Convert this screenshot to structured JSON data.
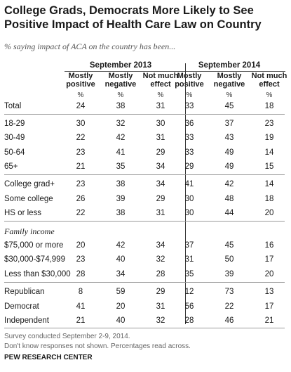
{
  "title": "College Grads, Democrats More Likely to See Positive Impact of Health Care Law on Country",
  "subtitle": "% saying impact of ACA on the country has been...",
  "chart_data": {
    "type": "table",
    "groups": [
      "September 2013",
      "September 2014"
    ],
    "columns": [
      "Mostly positive",
      "Mostly negative",
      "Not much effect"
    ],
    "pct_symbol": "%",
    "rows": [
      {
        "label": "Total",
        "values": [
          "24",
          "38",
          "31",
          "33",
          "45",
          "18"
        ]
      },
      {
        "label": "18-29",
        "values": [
          "30",
          "32",
          "30",
          "36",
          "37",
          "23"
        ]
      },
      {
        "label": "30-49",
        "values": [
          "22",
          "42",
          "31",
          "33",
          "43",
          "19"
        ]
      },
      {
        "label": "50-64",
        "values": [
          "23",
          "41",
          "29",
          "33",
          "49",
          "14"
        ]
      },
      {
        "label": "65+",
        "values": [
          "21",
          "35",
          "34",
          "29",
          "49",
          "15"
        ]
      },
      {
        "label": "College grad+",
        "values": [
          "23",
          "38",
          "34",
          "41",
          "42",
          "14"
        ]
      },
      {
        "label": "Some college",
        "values": [
          "26",
          "39",
          "29",
          "30",
          "48",
          "18"
        ]
      },
      {
        "label": "HS or less",
        "values": [
          "22",
          "38",
          "31",
          "30",
          "44",
          "20"
        ]
      },
      {
        "label": "Family income",
        "section": true,
        "values": []
      },
      {
        "label": "$75,000 or more",
        "values": [
          "20",
          "42",
          "34",
          "37",
          "45",
          "16"
        ]
      },
      {
        "label": "$30,000-$74,999",
        "values": [
          "23",
          "40",
          "32",
          "31",
          "50",
          "17"
        ]
      },
      {
        "label": "Less than $30,000",
        "values": [
          "28",
          "34",
          "28",
          "35",
          "39",
          "20"
        ]
      },
      {
        "label": "Republican",
        "values": [
          "8",
          "59",
          "29",
          "12",
          "73",
          "13"
        ]
      },
      {
        "label": "Democrat",
        "values": [
          "41",
          "20",
          "31",
          "56",
          "22",
          "17"
        ]
      },
      {
        "label": "Independent",
        "values": [
          "21",
          "40",
          "32",
          "28",
          "46",
          "21"
        ]
      }
    ]
  },
  "notes": [
    "Survey conducted September 2-9, 2014.",
    "Don't know responses not shown. Percentages read across."
  ],
  "source": "PEW RESEARCH CENTER"
}
